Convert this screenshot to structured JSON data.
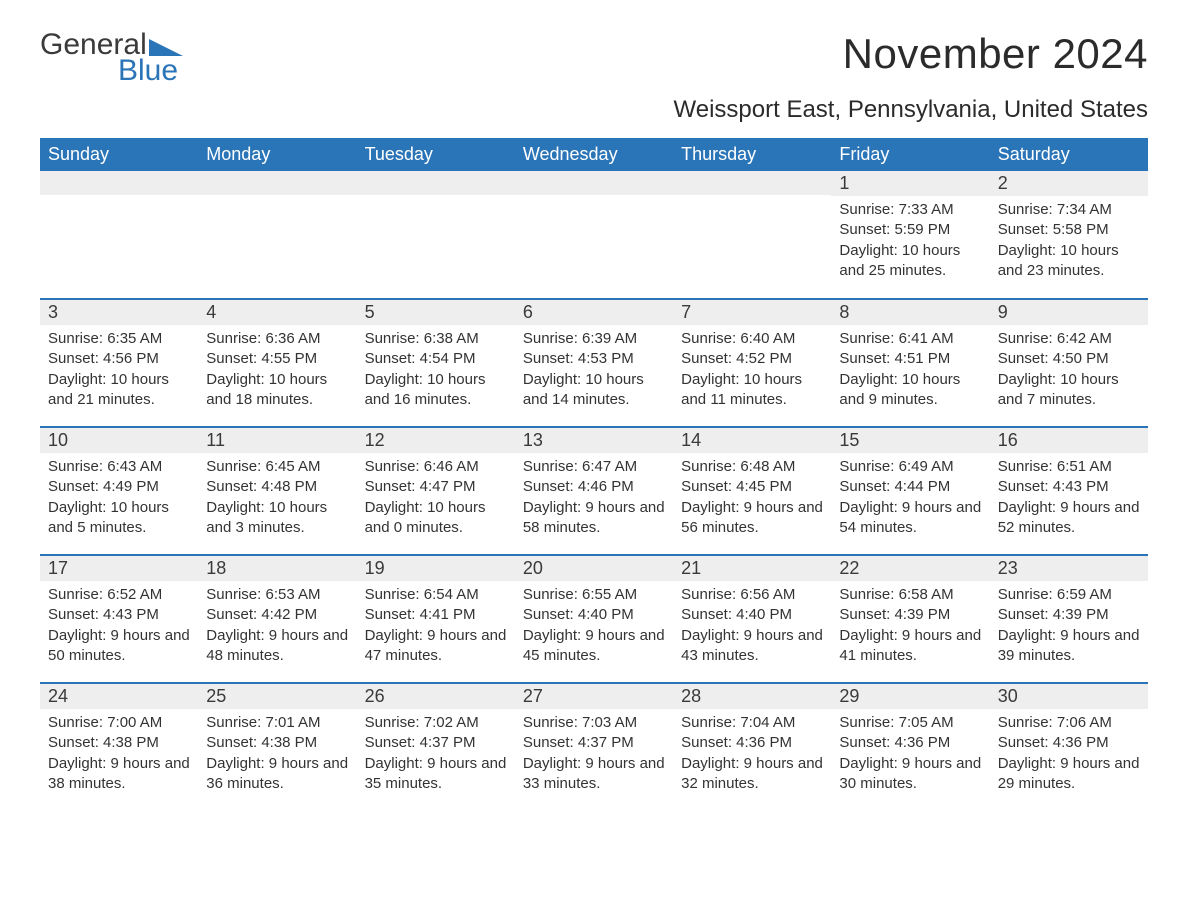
{
  "branding": {
    "logo_text_1": "General",
    "logo_text_2": "Blue",
    "logo_color_dark": "#3a3a3a",
    "logo_color_blue": "#2a74b8"
  },
  "header": {
    "month_title": "November 2024",
    "location": "Weissport East, Pennsylvania, United States"
  },
  "style": {
    "header_bg": "#2a74b8",
    "header_text": "#ffffff",
    "daynum_bg": "#eeeeee",
    "week_divider": "#2a74b8",
    "body_text": "#333333",
    "font_day_num": 18,
    "font_body": 15,
    "font_header": 18,
    "font_title": 42,
    "font_location": 24
  },
  "weekdays": [
    "Sunday",
    "Monday",
    "Tuesday",
    "Wednesday",
    "Thursday",
    "Friday",
    "Saturday"
  ],
  "labels": {
    "sunrise": "Sunrise:",
    "sunset": "Sunset:",
    "daylight": "Daylight:"
  },
  "weeks": [
    [
      null,
      null,
      null,
      null,
      null,
      {
        "num": "1",
        "sunrise": "7:33 AM",
        "sunset": "5:59 PM",
        "daylight": "10 hours and 25 minutes."
      },
      {
        "num": "2",
        "sunrise": "7:34 AM",
        "sunset": "5:58 PM",
        "daylight": "10 hours and 23 minutes."
      }
    ],
    [
      {
        "num": "3",
        "sunrise": "6:35 AM",
        "sunset": "4:56 PM",
        "daylight": "10 hours and 21 minutes."
      },
      {
        "num": "4",
        "sunrise": "6:36 AM",
        "sunset": "4:55 PM",
        "daylight": "10 hours and 18 minutes."
      },
      {
        "num": "5",
        "sunrise": "6:38 AM",
        "sunset": "4:54 PM",
        "daylight": "10 hours and 16 minutes."
      },
      {
        "num": "6",
        "sunrise": "6:39 AM",
        "sunset": "4:53 PM",
        "daylight": "10 hours and 14 minutes."
      },
      {
        "num": "7",
        "sunrise": "6:40 AM",
        "sunset": "4:52 PM",
        "daylight": "10 hours and 11 minutes."
      },
      {
        "num": "8",
        "sunrise": "6:41 AM",
        "sunset": "4:51 PM",
        "daylight": "10 hours and 9 minutes."
      },
      {
        "num": "9",
        "sunrise": "6:42 AM",
        "sunset": "4:50 PM",
        "daylight": "10 hours and 7 minutes."
      }
    ],
    [
      {
        "num": "10",
        "sunrise": "6:43 AM",
        "sunset": "4:49 PM",
        "daylight": "10 hours and 5 minutes."
      },
      {
        "num": "11",
        "sunrise": "6:45 AM",
        "sunset": "4:48 PM",
        "daylight": "10 hours and 3 minutes."
      },
      {
        "num": "12",
        "sunrise": "6:46 AM",
        "sunset": "4:47 PM",
        "daylight": "10 hours and 0 minutes."
      },
      {
        "num": "13",
        "sunrise": "6:47 AM",
        "sunset": "4:46 PM",
        "daylight": "9 hours and 58 minutes."
      },
      {
        "num": "14",
        "sunrise": "6:48 AM",
        "sunset": "4:45 PM",
        "daylight": "9 hours and 56 minutes."
      },
      {
        "num": "15",
        "sunrise": "6:49 AM",
        "sunset": "4:44 PM",
        "daylight": "9 hours and 54 minutes."
      },
      {
        "num": "16",
        "sunrise": "6:51 AM",
        "sunset": "4:43 PM",
        "daylight": "9 hours and 52 minutes."
      }
    ],
    [
      {
        "num": "17",
        "sunrise": "6:52 AM",
        "sunset": "4:43 PM",
        "daylight": "9 hours and 50 minutes."
      },
      {
        "num": "18",
        "sunrise": "6:53 AM",
        "sunset": "4:42 PM",
        "daylight": "9 hours and 48 minutes."
      },
      {
        "num": "19",
        "sunrise": "6:54 AM",
        "sunset": "4:41 PM",
        "daylight": "9 hours and 47 minutes."
      },
      {
        "num": "20",
        "sunrise": "6:55 AM",
        "sunset": "4:40 PM",
        "daylight": "9 hours and 45 minutes."
      },
      {
        "num": "21",
        "sunrise": "6:56 AM",
        "sunset": "4:40 PM",
        "daylight": "9 hours and 43 minutes."
      },
      {
        "num": "22",
        "sunrise": "6:58 AM",
        "sunset": "4:39 PM",
        "daylight": "9 hours and 41 minutes."
      },
      {
        "num": "23",
        "sunrise": "6:59 AM",
        "sunset": "4:39 PM",
        "daylight": "9 hours and 39 minutes."
      }
    ],
    [
      {
        "num": "24",
        "sunrise": "7:00 AM",
        "sunset": "4:38 PM",
        "daylight": "9 hours and 38 minutes."
      },
      {
        "num": "25",
        "sunrise": "7:01 AM",
        "sunset": "4:38 PM",
        "daylight": "9 hours and 36 minutes."
      },
      {
        "num": "26",
        "sunrise": "7:02 AM",
        "sunset": "4:37 PM",
        "daylight": "9 hours and 35 minutes."
      },
      {
        "num": "27",
        "sunrise": "7:03 AM",
        "sunset": "4:37 PM",
        "daylight": "9 hours and 33 minutes."
      },
      {
        "num": "28",
        "sunrise": "7:04 AM",
        "sunset": "4:36 PM",
        "daylight": "9 hours and 32 minutes."
      },
      {
        "num": "29",
        "sunrise": "7:05 AM",
        "sunset": "4:36 PM",
        "daylight": "9 hours and 30 minutes."
      },
      {
        "num": "30",
        "sunrise": "7:06 AM",
        "sunset": "4:36 PM",
        "daylight": "9 hours and 29 minutes."
      }
    ]
  ]
}
